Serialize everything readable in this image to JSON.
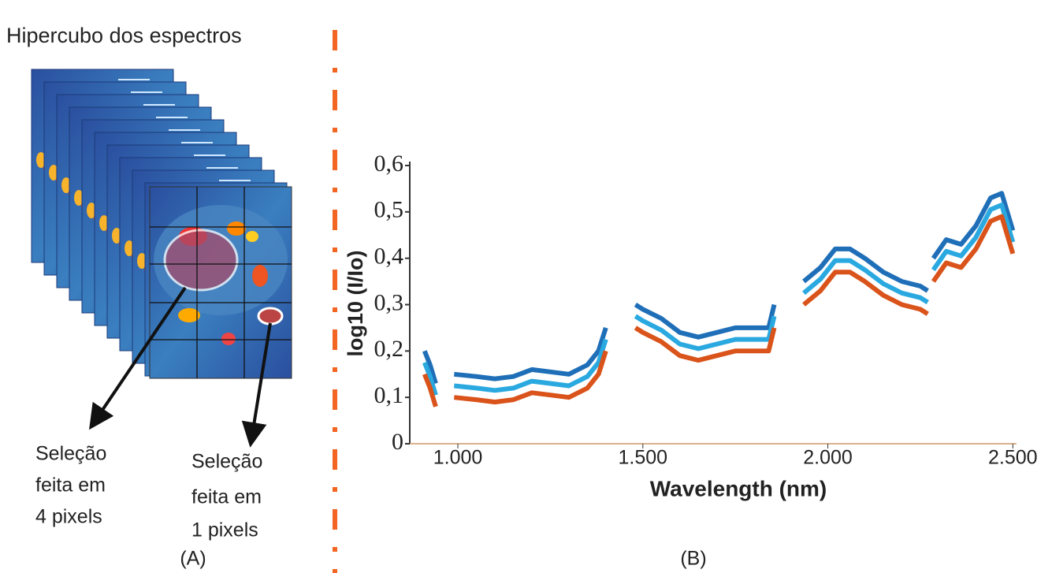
{
  "panel_a": {
    "title": "Hipercubo dos espectros",
    "selection_4": [
      "Seleção",
      "feita em",
      "4 pixels"
    ],
    "selection_1": [
      "Seleção",
      "feita em",
      "1 pixels"
    ],
    "label": "(A)"
  },
  "chart_data": {
    "type": "line",
    "panel_label": "(B)",
    "xlabel": "Wavelength (nm)",
    "ylabel": "log10 (I/Io)",
    "xlim": [
      870,
      2510
    ],
    "ylim": [
      0,
      0.6
    ],
    "xticks": [
      {
        "value": 1000,
        "label": "1.000"
      },
      {
        "value": 1500,
        "label": "1.500"
      },
      {
        "value": 2000,
        "label": "2.000"
      },
      {
        "value": 2500,
        "label": "2.500"
      }
    ],
    "yticks": [
      0,
      {
        "value": 0.1,
        "label": "0,1"
      },
      {
        "value": 0.2,
        "label": "0,2"
      },
      {
        "value": 0.3,
        "label": "0,3"
      },
      {
        "value": 0.4,
        "label": "0,4"
      },
      {
        "value": 0.5,
        "label": "0,5"
      },
      {
        "value": 0.6,
        "label": "0,6"
      }
    ],
    "x": [
      910,
      925,
      940,
      960,
      990,
      1050,
      1100,
      1150,
      1200,
      1250,
      1300,
      1350,
      1380,
      1400,
      1440,
      1480,
      1500,
      1550,
      1600,
      1650,
      1700,
      1750,
      1800,
      1840,
      1855,
      1900,
      1935,
      1980,
      2020,
      2060,
      2100,
      2150,
      2200,
      2250,
      2270,
      2275,
      2285,
      2320,
      2360,
      2400,
      2440,
      2470,
      2500
    ],
    "series": [
      {
        "color": "#1f6fb8",
        "values": [
          0.2,
          0.17,
          0.13,
          null,
          0.15,
          0.145,
          0.14,
          0.145,
          0.16,
          0.155,
          0.15,
          0.17,
          0.2,
          0.25,
          null,
          0.3,
          0.29,
          0.27,
          0.24,
          0.23,
          0.24,
          0.25,
          0.25,
          0.25,
          0.3,
          null,
          0.35,
          0.38,
          0.42,
          0.42,
          0.4,
          0.37,
          0.35,
          0.34,
          0.33,
          null,
          0.4,
          0.44,
          0.43,
          0.47,
          0.53,
          0.54,
          0.46
        ]
      },
      {
        "color": "#2aa9e0",
        "values": [
          0.175,
          0.145,
          0.105,
          null,
          0.125,
          0.12,
          0.115,
          0.12,
          0.135,
          0.13,
          0.125,
          0.145,
          0.175,
          0.225,
          null,
          0.275,
          0.265,
          0.245,
          0.215,
          0.205,
          0.215,
          0.225,
          0.225,
          0.225,
          0.275,
          null,
          0.325,
          0.355,
          0.395,
          0.395,
          0.375,
          0.345,
          0.325,
          0.315,
          0.305,
          null,
          0.375,
          0.415,
          0.405,
          0.445,
          0.505,
          0.515,
          0.435
        ]
      },
      {
        "color": "#d9531a",
        "values": [
          0.15,
          0.12,
          0.08,
          null,
          0.1,
          0.095,
          0.09,
          0.095,
          0.11,
          0.105,
          0.1,
          0.12,
          0.15,
          0.2,
          null,
          0.25,
          0.24,
          0.22,
          0.19,
          0.18,
          0.19,
          0.2,
          0.2,
          0.2,
          0.25,
          null,
          0.3,
          0.33,
          0.37,
          0.37,
          0.35,
          0.32,
          0.3,
          0.29,
          0.28,
          null,
          0.35,
          0.39,
          0.38,
          0.42,
          0.48,
          0.49,
          0.41
        ]
      }
    ]
  }
}
